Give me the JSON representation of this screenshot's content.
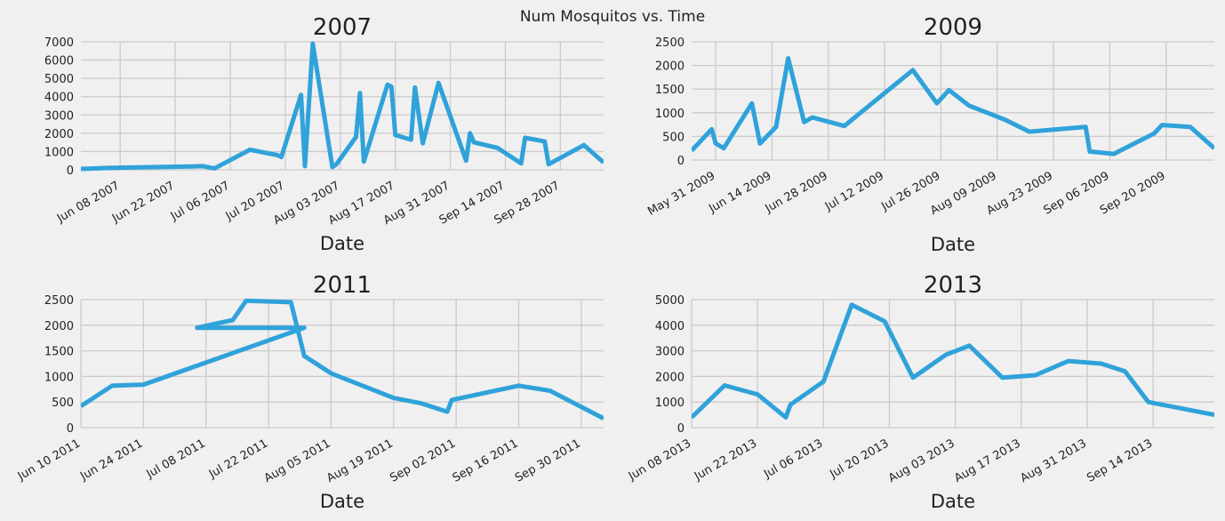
{
  "figure": {
    "title": "Num Mosquitos vs. Time"
  },
  "colors": {
    "line": "#30a2da",
    "background": "#f0f0f0",
    "grid": "#cbcbcb"
  },
  "chart_data": [
    {
      "type": "line",
      "title": "2007",
      "xlabel": "Date",
      "ylabel": "",
      "grid": true,
      "xlim": [
        "2007-05-29",
        "2007-10-09"
      ],
      "ylim": [
        0,
        7000
      ],
      "yticks": [
        0,
        1000,
        2000,
        3000,
        4000,
        5000,
        6000,
        7000
      ],
      "xticks": [
        {
          "date": "2007-06-08",
          "label": "Jun 08 2007"
        },
        {
          "date": "2007-06-22",
          "label": "Jun 22 2007"
        },
        {
          "date": "2007-07-06",
          "label": "Jul 06 2007"
        },
        {
          "date": "2007-07-20",
          "label": "Jul 20 2007"
        },
        {
          "date": "2007-08-03",
          "label": "Aug 03 2007"
        },
        {
          "date": "2007-08-17",
          "label": "Aug 17 2007"
        },
        {
          "date": "2007-08-31",
          "label": "Aug 31 2007"
        },
        {
          "date": "2007-09-14",
          "label": "Sep 14 2007"
        },
        {
          "date": "2007-09-28",
          "label": "Sep 28 2007"
        }
      ],
      "series": [
        {
          "x": [
            "2007-05-29",
            "2007-06-05",
            "2007-06-26",
            "2007-06-29",
            "2007-07-02",
            "2007-07-11",
            "2007-07-18",
            "2007-07-19",
            "2007-07-24",
            "2007-07-25",
            "2007-07-27",
            "2007-08-01",
            "2007-08-02",
            "2007-08-07",
            "2007-08-08",
            "2007-08-09",
            "2007-08-15",
            "2007-08-16",
            "2007-08-17",
            "2007-08-21",
            "2007-08-22",
            "2007-08-24",
            "2007-08-28",
            "2007-09-04",
            "2007-09-05",
            "2007-09-06",
            "2007-09-12",
            "2007-09-18",
            "2007-09-19",
            "2007-09-24",
            "2007-09-25",
            "2007-10-04",
            "2007-10-09"
          ],
          "y": [
            50,
            100,
            180,
            200,
            80,
            1100,
            800,
            700,
            4100,
            200,
            6900,
            150,
            300,
            1800,
            4200,
            450,
            4650,
            4550,
            1900,
            1650,
            4500,
            1450,
            4750,
            500,
            2000,
            1500,
            1200,
            350,
            1750,
            1550,
            300,
            1350,
            400
          ]
        }
      ]
    },
    {
      "type": "line",
      "title": "2009",
      "xlabel": "Date",
      "ylabel": "",
      "grid": true,
      "xlim": [
        "2009-05-25",
        "2009-10-02"
      ],
      "ylim": [
        0,
        2500
      ],
      "yticks": [
        0,
        500,
        1000,
        1500,
        2000,
        2500
      ],
      "xticks": [
        {
          "date": "2009-05-31",
          "label": "May 31 2009"
        },
        {
          "date": "2009-06-14",
          "label": "Jun 14 2009"
        },
        {
          "date": "2009-06-28",
          "label": "Jun 28 2009"
        },
        {
          "date": "2009-07-12",
          "label": "Jul 12 2009"
        },
        {
          "date": "2009-07-26",
          "label": "Jul 26 2009"
        },
        {
          "date": "2009-08-09",
          "label": "Aug 09 2009"
        },
        {
          "date": "2009-08-23",
          "label": "Aug 23 2009"
        },
        {
          "date": "2009-09-06",
          "label": "Sep 06 2009"
        },
        {
          "date": "2009-09-20",
          "label": "Sep 20 2009"
        }
      ],
      "series": [
        {
          "x": [
            "2009-05-25",
            "2009-05-30",
            "2009-05-31",
            "2009-06-02",
            "2009-06-09",
            "2009-06-11",
            "2009-06-15",
            "2009-06-18",
            "2009-06-22",
            "2009-06-24",
            "2009-07-02",
            "2009-07-06",
            "2009-07-19",
            "2009-07-25",
            "2009-07-28",
            "2009-08-02",
            "2009-08-11",
            "2009-08-17",
            "2009-08-31",
            "2009-09-01",
            "2009-09-07",
            "2009-09-17",
            "2009-09-19",
            "2009-09-26",
            "2009-10-02"
          ],
          "y": [
            200,
            650,
            350,
            250,
            1200,
            350,
            700,
            2150,
            800,
            900,
            720,
            1000,
            1900,
            1200,
            1480,
            1150,
            850,
            600,
            700,
            180,
            130,
            560,
            740,
            700,
            250
          ]
        }
      ]
    },
    {
      "type": "line",
      "title": "2011",
      "xlabel": "Date",
      "ylabel": "",
      "grid": true,
      "xlim": [
        "2011-06-10",
        "2011-10-05"
      ],
      "ylim": [
        0,
        2500
      ],
      "yticks": [
        0,
        500,
        1000,
        1500,
        2000,
        2500
      ],
      "xticks": [
        {
          "date": "2011-06-10",
          "label": "Jun 10 2011"
        },
        {
          "date": "2011-06-24",
          "label": "Jun 24 2011"
        },
        {
          "date": "2011-07-08",
          "label": "Jul 08 2011"
        },
        {
          "date": "2011-07-22",
          "label": "Jul 22 2011"
        },
        {
          "date": "2011-08-05",
          "label": "Aug 05 2011"
        },
        {
          "date": "2011-08-19",
          "label": "Aug 19 2011"
        },
        {
          "date": "2011-09-02",
          "label": "Sep 02 2011"
        },
        {
          "date": "2011-09-16",
          "label": "Sep 16 2011"
        },
        {
          "date": "2011-09-30",
          "label": "Sep 30 2011"
        }
      ],
      "series": [
        {
          "x": [
            "2011-06-10",
            "2011-06-17",
            "2011-06-24",
            "2011-07-30",
            "2011-07-06",
            "2011-07-14",
            "2011-07-17",
            "2011-07-27",
            "2011-07-30",
            "2011-08-05",
            "2011-08-19",
            "2011-08-25",
            "2011-08-31",
            "2011-09-01",
            "2011-09-16",
            "2011-09-23",
            "2011-10-05"
          ],
          "y": [
            420,
            820,
            840,
            1950,
            1950,
            2100,
            2480,
            2450,
            1400,
            1060,
            580,
            480,
            310,
            540,
            820,
            720,
            180
          ]
        }
      ]
    },
    {
      "type": "line",
      "title": "2013",
      "xlabel": "Date",
      "ylabel": "",
      "grid": true,
      "xlim": [
        "2013-06-08",
        "2013-09-27"
      ],
      "ylim": [
        0,
        5000
      ],
      "yticks": [
        0,
        1000,
        2000,
        3000,
        4000,
        5000
      ],
      "xticks": [
        {
          "date": "2013-06-08",
          "label": "Jun 08 2013"
        },
        {
          "date": "2013-06-22",
          "label": "Jun 22 2013"
        },
        {
          "date": "2013-07-06",
          "label": "Jul 06 2013"
        },
        {
          "date": "2013-07-20",
          "label": "Jul 20 2013"
        },
        {
          "date": "2013-08-03",
          "label": "Aug 03 2013"
        },
        {
          "date": "2013-08-17",
          "label": "Aug 17 2013"
        },
        {
          "date": "2013-08-31",
          "label": "Aug 31 2013"
        },
        {
          "date": "2013-09-14",
          "label": "Sep 14 2013"
        }
      ],
      "series": [
        {
          "x": [
            "2013-06-08",
            "2013-06-15",
            "2013-06-22",
            "2013-06-28",
            "2013-06-29",
            "2013-07-06",
            "2013-07-12",
            "2013-07-19",
            "2013-07-25",
            "2013-08-01",
            "2013-08-06",
            "2013-08-13",
            "2013-08-20",
            "2013-08-27",
            "2013-09-03",
            "2013-09-08",
            "2013-09-13",
            "2013-09-27"
          ],
          "y": [
            400,
            1650,
            1300,
            400,
            900,
            1800,
            4800,
            4150,
            1950,
            2850,
            3200,
            1950,
            2050,
            2600,
            2500,
            2200,
            1000,
            500
          ]
        }
      ]
    }
  ]
}
